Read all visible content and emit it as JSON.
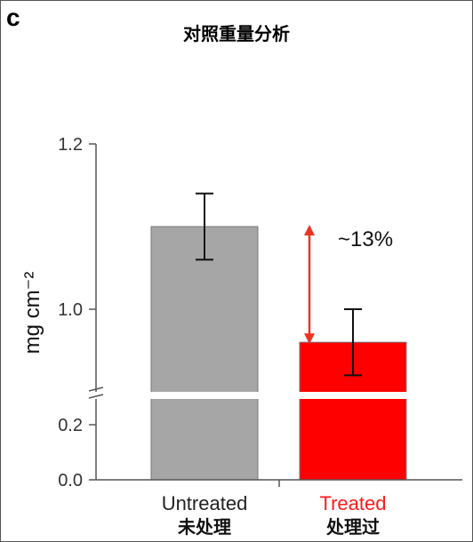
{
  "panel_label": "c",
  "title": "对照重量分析",
  "chart_data": {
    "type": "bar",
    "title": "对照重量分析",
    "ylabel": "mg cm⁻²",
    "y_axis_break": true,
    "ylim_lower": [
      0.0,
      0.3
    ],
    "ylim_upper": [
      0.9,
      1.2
    ],
    "yticks": [
      {
        "value": 0.0,
        "label": "0.0"
      },
      {
        "value": 0.2,
        "label": "0.2"
      },
      {
        "value": 1.0,
        "label": "1.0"
      },
      {
        "value": 1.2,
        "label": "1.2"
      }
    ],
    "categories": [
      "Untreated",
      "Treated"
    ],
    "category_sublabels": [
      "未处理",
      "处理过"
    ],
    "values": [
      1.1,
      0.96
    ],
    "errors": [
      0.04,
      0.04
    ],
    "colors": [
      "#a6a6a6",
      "#ff0000"
    ],
    "label_colors": [
      "#222222",
      "#ff1a1a"
    ],
    "annotation": {
      "text": "~13%",
      "arrow_color": "#ee3322"
    }
  }
}
